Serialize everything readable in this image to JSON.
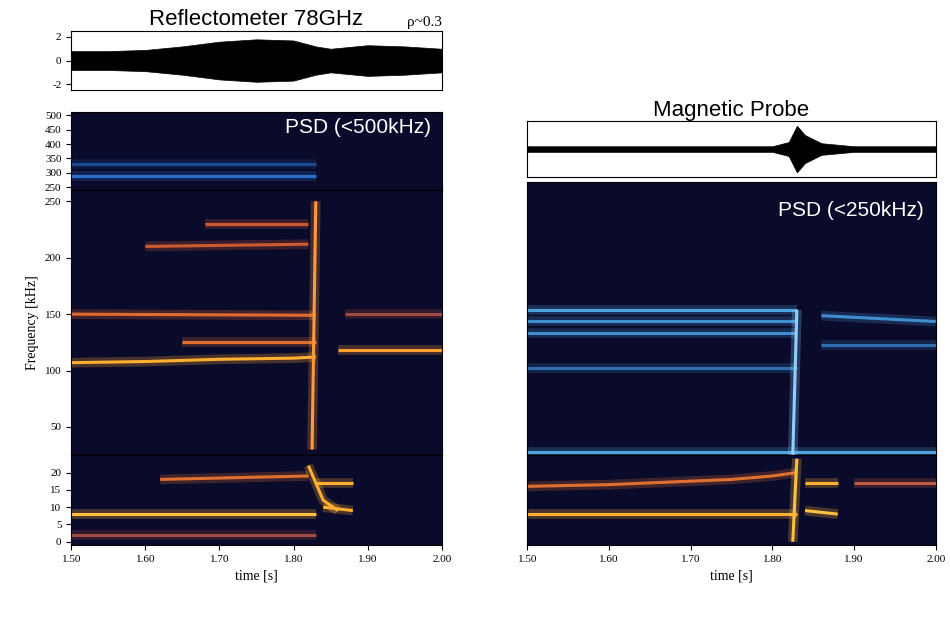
{
  "chart_data": [
    {
      "type": "area",
      "title": "Reflectometer 78GHz",
      "subtitle": "ρ~0.3",
      "xlim": [
        1.5,
        2.0
      ],
      "ylim": [
        -2.5,
        2.5
      ],
      "yticks": [
        -2,
        0,
        2
      ],
      "tick_labels": "y",
      "series": [
        {
          "color": "#000000",
          "x": [
            1.5,
            1.55,
            1.6,
            1.65,
            1.7,
            1.75,
            1.8,
            1.83,
            1.85,
            1.9,
            1.95,
            2.0
          ],
          "values": [
            0.8,
            0.8,
            0.9,
            1.2,
            1.6,
            1.8,
            1.7,
            1.2,
            1.0,
            1.3,
            1.2,
            1.0
          ]
        }
      ]
    },
    {
      "type": "line",
      "annotation": "PSD (<500kHz)",
      "xlim": [
        1.5,
        2.0
      ],
      "ylim": [
        240,
        510
      ],
      "yticks": [
        250,
        300,
        350,
        400,
        450,
        500
      ],
      "tick_labels": "y",
      "series": [
        {
          "color": "#2a6fd0",
          "x": [
            1.5,
            1.83
          ],
          "values": [
            290,
            290
          ]
        },
        {
          "color": "#1c4a90",
          "x": [
            1.5,
            1.83
          ],
          "values": [
            330,
            330
          ]
        }
      ]
    },
    {
      "type": "line",
      "ylabel": "Frequency [kHz]",
      "xlim": [
        1.5,
        2.0
      ],
      "ylim": [
        25,
        260
      ],
      "yticks": [
        50,
        100,
        150,
        200,
        250
      ],
      "tick_labels": "y",
      "series": [
        {
          "color": "#ffb030",
          "x": [
            1.5,
            1.6,
            1.7,
            1.8,
            1.83
          ],
          "values": [
            107,
            108,
            110,
            111,
            112
          ]
        },
        {
          "color": "#e07030",
          "x": [
            1.65,
            1.83
          ],
          "values": [
            125,
            125
          ]
        },
        {
          "color": "#e06a30",
          "x": [
            1.5,
            1.83
          ],
          "values": [
            150,
            149
          ]
        },
        {
          "color": "#d05a30",
          "x": [
            1.6,
            1.82
          ],
          "values": [
            210,
            212
          ]
        },
        {
          "color": "#d05a30",
          "x": [
            1.68,
            1.82
          ],
          "values": [
            230,
            230
          ]
        },
        {
          "color": "#ff9a3c",
          "x": [
            1.825,
            1.83
          ],
          "values": [
            30,
            250
          ]
        },
        {
          "color": "#ffa030",
          "x": [
            1.86,
            2.0
          ],
          "values": [
            118,
            118
          ]
        },
        {
          "color": "#a04a40",
          "x": [
            1.87,
            2.0
          ],
          "values": [
            150,
            150
          ]
        }
      ]
    },
    {
      "type": "line",
      "xlabel": "time [s]",
      "xlim": [
        1.5,
        2.0
      ],
      "ylim": [
        -1,
        25
      ],
      "yticks": [
        0,
        5,
        10,
        15,
        20
      ],
      "xticks": [
        {
          "value": 1.5,
          "label": "1.50"
        },
        {
          "value": 1.6,
          "label": "1.60"
        },
        {
          "value": 1.7,
          "label": "1.70"
        },
        {
          "value": 1.8,
          "label": "1.80"
        },
        {
          "value": 1.9,
          "label": "1.90"
        },
        {
          "value": 2.0,
          "label": "2.00"
        }
      ],
      "series": [
        {
          "color": "#ffc040",
          "x": [
            1.5,
            1.83
          ],
          "values": [
            8,
            8
          ]
        },
        {
          "color": "#e07030",
          "x": [
            1.62,
            1.82
          ],
          "values": [
            18,
            19
          ]
        },
        {
          "color": "#a04a40",
          "x": [
            1.5,
            1.83
          ],
          "values": [
            2,
            2
          ]
        },
        {
          "color": "#ffb030",
          "x": [
            1.82,
            1.83,
            1.84,
            1.86
          ],
          "values": [
            22,
            17,
            12,
            9
          ]
        },
        {
          "color": "#ffb030",
          "x": [
            1.83,
            1.88
          ],
          "values": [
            17,
            17
          ]
        },
        {
          "color": "#ffb030",
          "x": [
            1.84,
            1.88
          ],
          "values": [
            10,
            9
          ]
        }
      ]
    },
    {
      "type": "area",
      "title": "Magnetic Probe",
      "xlim": [
        1.5,
        2.0
      ],
      "ylim": [
        -1.2,
        1.2
      ],
      "tick_labels": false,
      "series": [
        {
          "color": "#000000",
          "x": [
            1.5,
            1.6,
            1.7,
            1.8,
            1.82,
            1.83,
            1.84,
            1.86,
            1.9,
            2.0
          ],
          "values": [
            0.12,
            0.12,
            0.12,
            0.12,
            0.3,
            1.0,
            0.6,
            0.25,
            0.12,
            0.12
          ]
        }
      ]
    },
    {
      "type": "line",
      "annotation": "PSD (<250kHz)",
      "xlim": [
        1.5,
        2.0
      ],
      "ylim": [
        25,
        260
      ],
      "tick_labels": false,
      "series": [
        {
          "color": "#4fa3e0",
          "x": [
            1.5,
            1.83
          ],
          "values": [
            150,
            150
          ]
        },
        {
          "color": "#3f8fd0",
          "x": [
            1.5,
            1.83
          ],
          "values": [
            140,
            140
          ]
        },
        {
          "color": "#3f8fd0",
          "x": [
            1.5,
            1.83
          ],
          "values": [
            130,
            130
          ]
        },
        {
          "color": "#2f6fb0",
          "x": [
            1.5,
            1.83
          ],
          "values": [
            100,
            100
          ]
        },
        {
          "color": "#4fa3e0",
          "x": [
            1.5,
            2.0
          ],
          "values": [
            28,
            28
          ]
        },
        {
          "color": "#8fd0ff",
          "x": [
            1.825,
            1.83
          ],
          "values": [
            25,
            150
          ]
        },
        {
          "color": "#3f8fd0",
          "x": [
            1.86,
            2.0
          ],
          "values": [
            145,
            140
          ]
        },
        {
          "color": "#2f6fb0",
          "x": [
            1.86,
            2.0
          ],
          "values": [
            120,
            120
          ]
        }
      ]
    },
    {
      "type": "line",
      "xlabel": "time [s]",
      "xlim": [
        1.5,
        2.0
      ],
      "ylim": [
        -1,
        25
      ],
      "tick_labels": "x",
      "xticks": [
        {
          "value": 1.5,
          "label": "1.50"
        },
        {
          "value": 1.6,
          "label": "1.60"
        },
        {
          "value": 1.7,
          "label": "1.70"
        },
        {
          "value": 1.8,
          "label": "1.80"
        },
        {
          "value": 1.9,
          "label": "1.90"
        },
        {
          "value": 2.0,
          "label": "2.00"
        }
      ],
      "series": [
        {
          "color": "#ffb030",
          "x": [
            1.5,
            1.83
          ],
          "values": [
            8,
            8
          ]
        },
        {
          "color": "#e07030",
          "x": [
            1.5,
            1.6,
            1.7,
            1.75,
            1.8,
            1.83
          ],
          "values": [
            16,
            16.5,
            17.5,
            18,
            19,
            20
          ]
        },
        {
          "color": "#ffc040",
          "x": [
            1.825,
            1.83
          ],
          "values": [
            0,
            24
          ]
        },
        {
          "color": "#ffb030",
          "x": [
            1.84,
            1.88
          ],
          "values": [
            17,
            17
          ]
        },
        {
          "color": "#ffc040",
          "x": [
            1.84,
            1.88
          ],
          "values": [
            9,
            8
          ]
        },
        {
          "color": "#c05a40",
          "x": [
            1.9,
            2.0
          ],
          "values": [
            17,
            17
          ]
        }
      ]
    }
  ]
}
